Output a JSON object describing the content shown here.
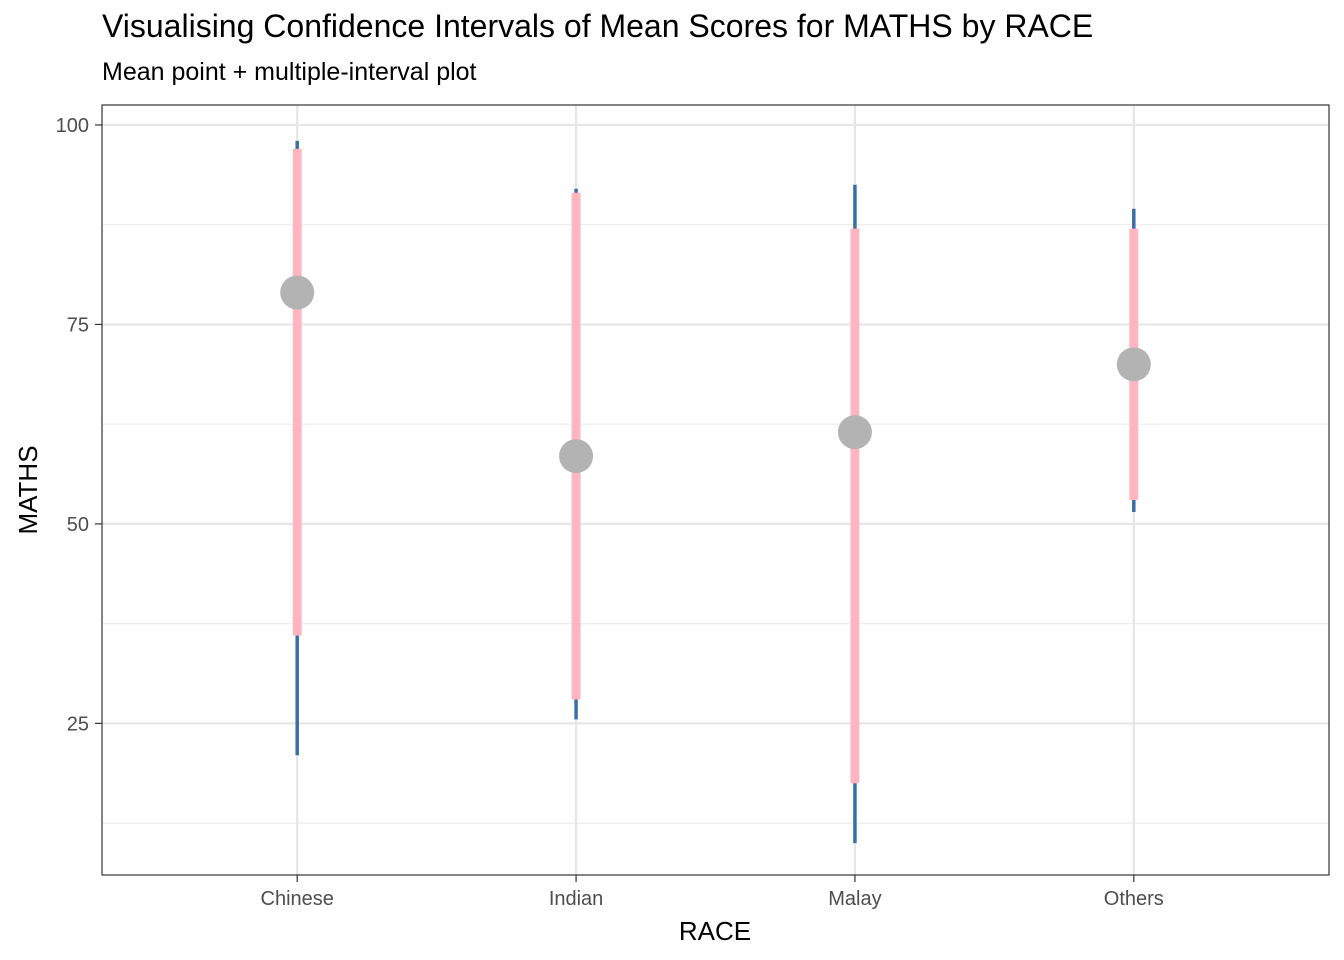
{
  "chart_data": {
    "type": "interval",
    "title": "Visualising Confidence Intervals of Mean Scores for MATHS by RACE",
    "subtitle": "Mean point + multiple-interval plot",
    "xlabel": "RACE",
    "ylabel": "MATHS",
    "categories": [
      "Chinese",
      "Indian",
      "Malay",
      "Others"
    ],
    "ylim": [
      6,
      102.5
    ],
    "yticks": [
      25,
      50,
      75,
      100
    ],
    "grid": true,
    "series": [
      {
        "role": "mean",
        "values": [
          79.0,
          58.5,
          61.5,
          70.0
        ]
      },
      {
        "role": "inner_interval",
        "lower": [
          36.0,
          28.0,
          17.5,
          53.0
        ],
        "upper": [
          97.0,
          91.5,
          87.0,
          87.0
        ]
      },
      {
        "role": "outer_interval",
        "lower": [
          21.0,
          25.5,
          10.0,
          51.5
        ],
        "upper": [
          98.0,
          92.0,
          92.5,
          89.5
        ]
      }
    ],
    "colors": {
      "mean": "#b3b3b3",
      "inner_interval": "#ffb6c1",
      "outer_interval": "#3b6ea5"
    }
  }
}
